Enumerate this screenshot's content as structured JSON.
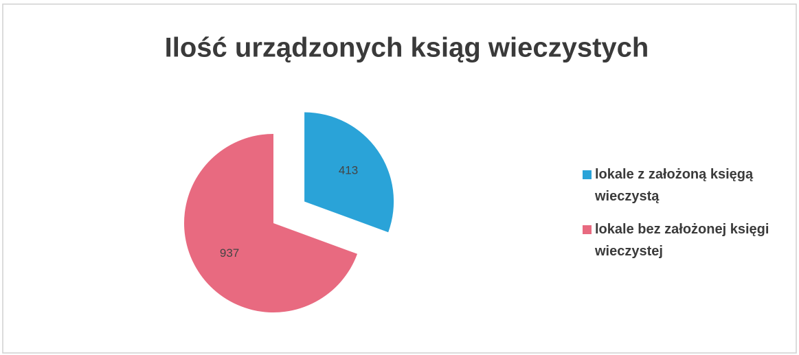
{
  "chart_data": {
    "type": "pie",
    "title": "Ilość urządzonych ksiąg wieczystych",
    "categories": [
      "lokale z założoną księgą wieczystą",
      "lokale bez założonej księgi wieczystej"
    ],
    "values": [
      413,
      937
    ],
    "colors": [
      "#2aa3d8",
      "#e86a80"
    ],
    "legend": "right"
  }
}
